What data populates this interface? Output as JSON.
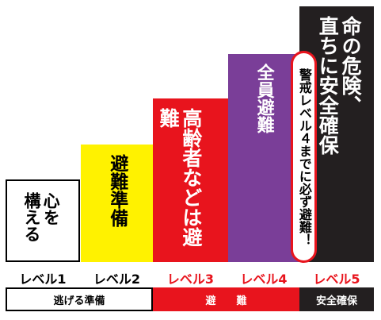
{
  "levels": [
    {
      "label": "レベル1",
      "label_color": "#000000",
      "fill": "#ffffff",
      "text_color": "#000000",
      "message": [
        "心を",
        "構える"
      ]
    },
    {
      "label": "レベル2",
      "label_color": "#000000",
      "fill": "#fff200",
      "text_color": "#000000",
      "message": [
        "避難準備"
      ]
    },
    {
      "label": "レベル3",
      "label_color": "#e8141d",
      "fill": "#e8141d",
      "text_color": "#ffffff",
      "message": [
        "高齢者などは避難"
      ]
    },
    {
      "label": "レベル4",
      "label_color": "#e8141d",
      "fill": "#7a3e98",
      "text_color": "#ffffff",
      "message": [
        "全員避難"
      ]
    },
    {
      "label": "レベル5",
      "label_color": "#e8141d",
      "fill": "#231f20",
      "text_color": "#ffffff",
      "message": [
        "命の危険、",
        "直ちに安全確保"
      ]
    }
  ],
  "callout": "警戒レベル４までに必ず避難！",
  "bands": [
    {
      "label": "逃げる準備",
      "fill": "#ffffff",
      "text_color": "#000000"
    },
    {
      "label": "避　　難",
      "fill": "#e8141d",
      "text_color": "#ffffff"
    },
    {
      "label": "安全確保",
      "fill": "#231f20",
      "text_color": "#ffffff"
    }
  ]
}
